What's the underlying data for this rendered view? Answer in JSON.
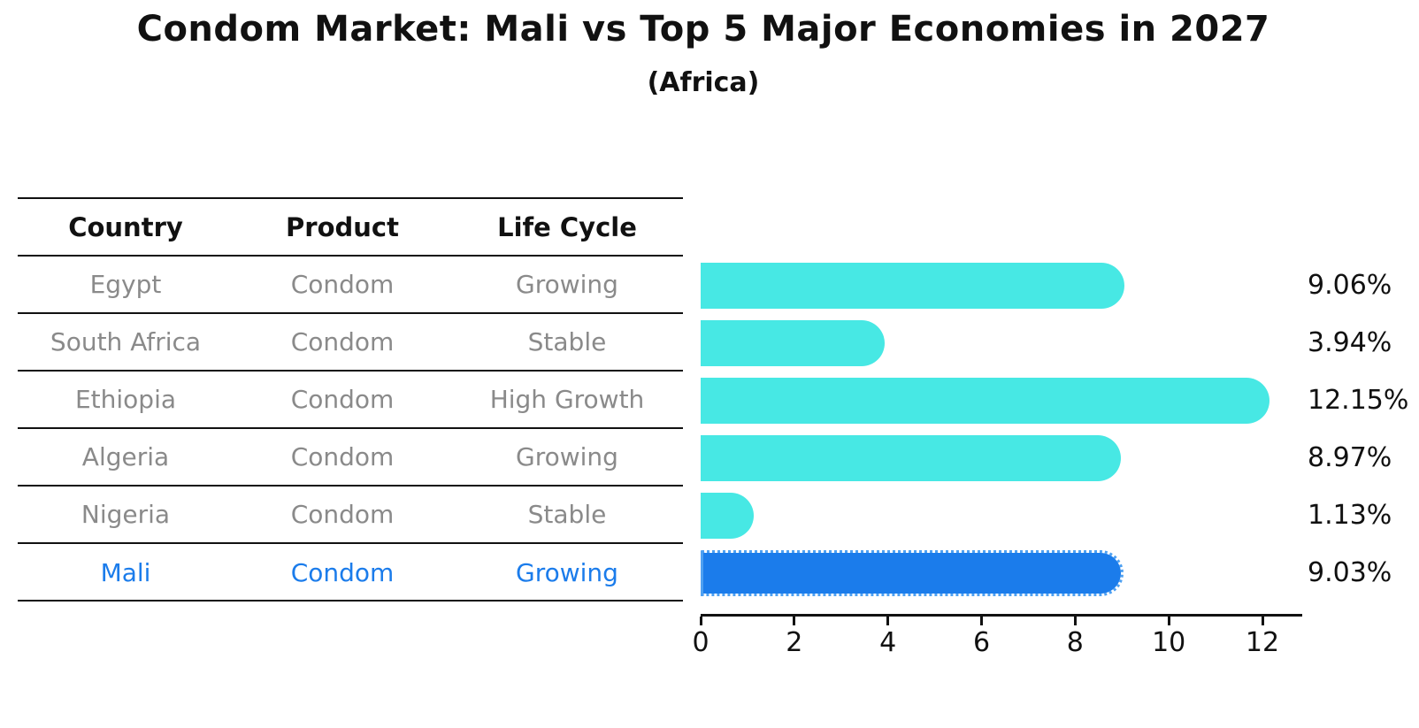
{
  "title": "Condom Market: Mali vs Top 5 Major Economies in 2027",
  "subtitle": "(Africa)",
  "table": {
    "headers": {
      "country": "Country",
      "product": "Product",
      "life_cycle": "Life Cycle"
    },
    "rows": [
      {
        "country": "Egypt",
        "product": "Condom",
        "life_cycle": "Growing"
      },
      {
        "country": "South Africa",
        "product": "Condom",
        "life_cycle": "Stable"
      },
      {
        "country": "Ethiopia",
        "product": "Condom",
        "life_cycle": "High Growth"
      },
      {
        "country": "Algeria",
        "product": "Condom",
        "life_cycle": "Growing"
      },
      {
        "country": "Nigeria",
        "product": "Condom",
        "life_cycle": "Stable"
      },
      {
        "country": "Mali",
        "product": "Condom",
        "life_cycle": "Growing"
      }
    ]
  },
  "chart_data": {
    "type": "bar",
    "orientation": "horizontal",
    "title": "Condom Market: Mali vs Top 5 Major Economies in 2027",
    "subtitle": "(Africa)",
    "categories": [
      "Egypt",
      "South Africa",
      "Ethiopia",
      "Algeria",
      "Nigeria",
      "Mali"
    ],
    "values": [
      9.06,
      3.94,
      12.15,
      8.97,
      1.13,
      9.03
    ],
    "value_labels": [
      "9.06%",
      "3.94%",
      "12.15%",
      "8.97%",
      "1.13%",
      "9.03%"
    ],
    "x_ticks": [
      0,
      2,
      4,
      6,
      8,
      10,
      12
    ],
    "xlim": [
      0,
      12.85
    ],
    "grid": false,
    "legend": null,
    "highlight_index": 5,
    "bar_color": "#47E8E4",
    "highlight_color": "#1B7CEB",
    "highlight_dot_color": "#4DA0F2"
  }
}
